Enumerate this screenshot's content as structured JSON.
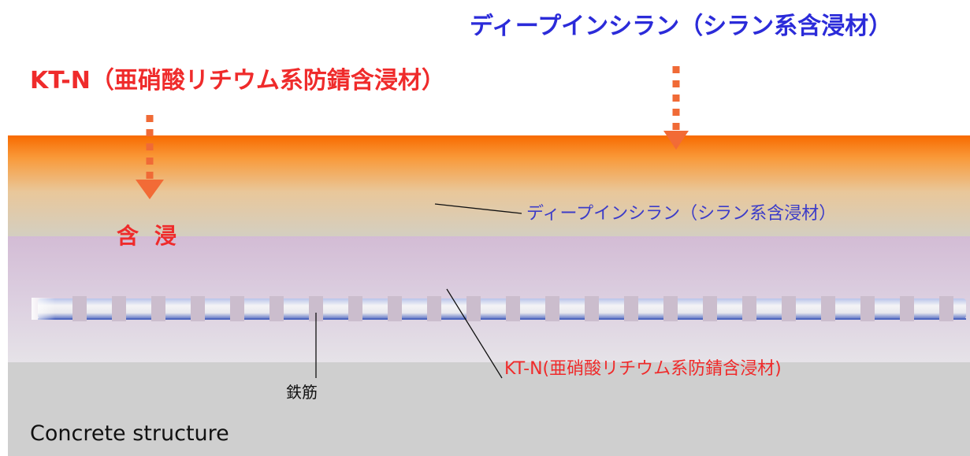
{
  "titles": {
    "silane": "ディープインシラン（シラン系含浸材）",
    "ktn": "KT-N（亜硝酸リチウム系防錆含浸材）"
  },
  "labels": {
    "penetration": "含浸",
    "silane_layer": "ディープインシラン（シラン系含浸材）",
    "ktn_layer": "KT-N(亜硝酸リチウム系防錆含浸材)",
    "rebar": "鉄筋",
    "structure": "Concrete structure"
  },
  "colors": {
    "red": "#ef2b2b",
    "blue": "#2b2bd9",
    "orange_top": "#f86a00",
    "silane_fade": "#d4ceb8",
    "ktn_layer": "#d4bcd6",
    "ktn_fade": "#e6e2e8",
    "concrete": "#cfcfcf",
    "rebar_line": "#6a7fc8",
    "leader": "#111111"
  }
}
